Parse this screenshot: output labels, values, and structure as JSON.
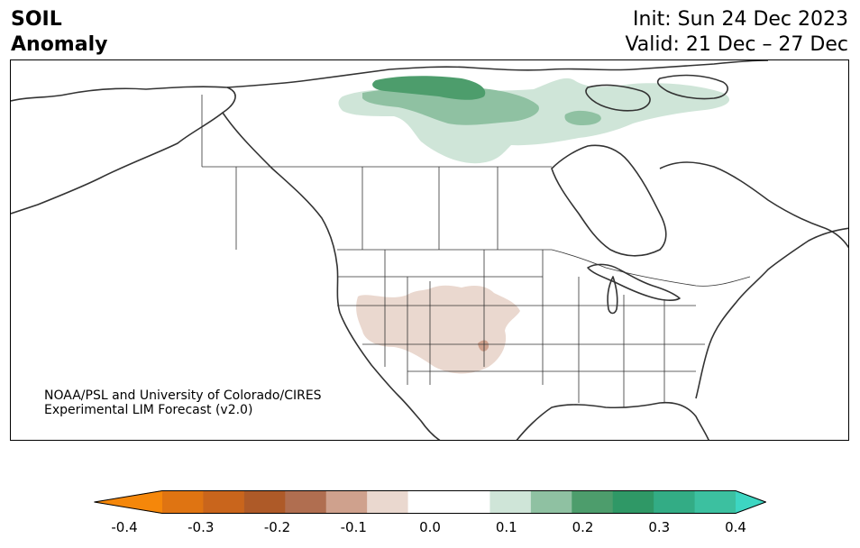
{
  "header": {
    "variable_line1": "SOIL",
    "variable_line2": "Anomaly",
    "init_label": "Init: Sun 24 Dec 2023",
    "valid_label": "Valid: 21 Dec – 27 Dec"
  },
  "credit": {
    "line1": "NOAA/PSL and University of Colorado/CIRES",
    "line2": "Experimental LIM Forecast (v2.0)"
  },
  "colorbar": {
    "min": -0.4,
    "max": 0.4,
    "bins": [
      {
        "from": -0.4,
        "to": -0.35,
        "color": "#f5870a"
      },
      {
        "from": -0.35,
        "to": -0.3,
        "color": "#df7412"
      },
      {
        "from": -0.3,
        "to": -0.25,
        "color": "#c9651c"
      },
      {
        "from": -0.25,
        "to": -0.2,
        "color": "#ae5a28"
      },
      {
        "from": -0.2,
        "to": -0.15,
        "color": "#b06e50"
      },
      {
        "from": -0.15,
        "to": -0.1,
        "color": "#cfa18d"
      },
      {
        "from": -0.1,
        "to": -0.05,
        "color": "#ead8cf"
      },
      {
        "from": -0.05,
        "to": 0.05,
        "color": "#ffffff"
      },
      {
        "from": 0.05,
        "to": 0.1,
        "color": "#cfe5d8"
      },
      {
        "from": 0.1,
        "to": 0.15,
        "color": "#8fc1a2"
      },
      {
        "from": 0.15,
        "to": 0.2,
        "color": "#4d9d6c"
      },
      {
        "from": 0.2,
        "to": 0.25,
        "color": "#2f9866"
      },
      {
        "from": 0.25,
        "to": 0.3,
        "color": "#33ac85"
      },
      {
        "from": 0.3,
        "to": 0.35,
        "color": "#3cc0a0"
      },
      {
        "from": 0.35,
        "to": 0.4,
        "color": "#3dd6c2"
      }
    ],
    "under_color": "#f5870a",
    "over_color": "#3dd6c2",
    "ticks": [
      "-0.4",
      "-0.3",
      "-0.2",
      "-0.1",
      "0.0",
      "0.1",
      "0.2",
      "0.3",
      "0.4"
    ],
    "tick_values": [
      -0.4,
      -0.3,
      -0.2,
      -0.1,
      0.0,
      0.1,
      0.2,
      0.3,
      0.4
    ]
  }
}
